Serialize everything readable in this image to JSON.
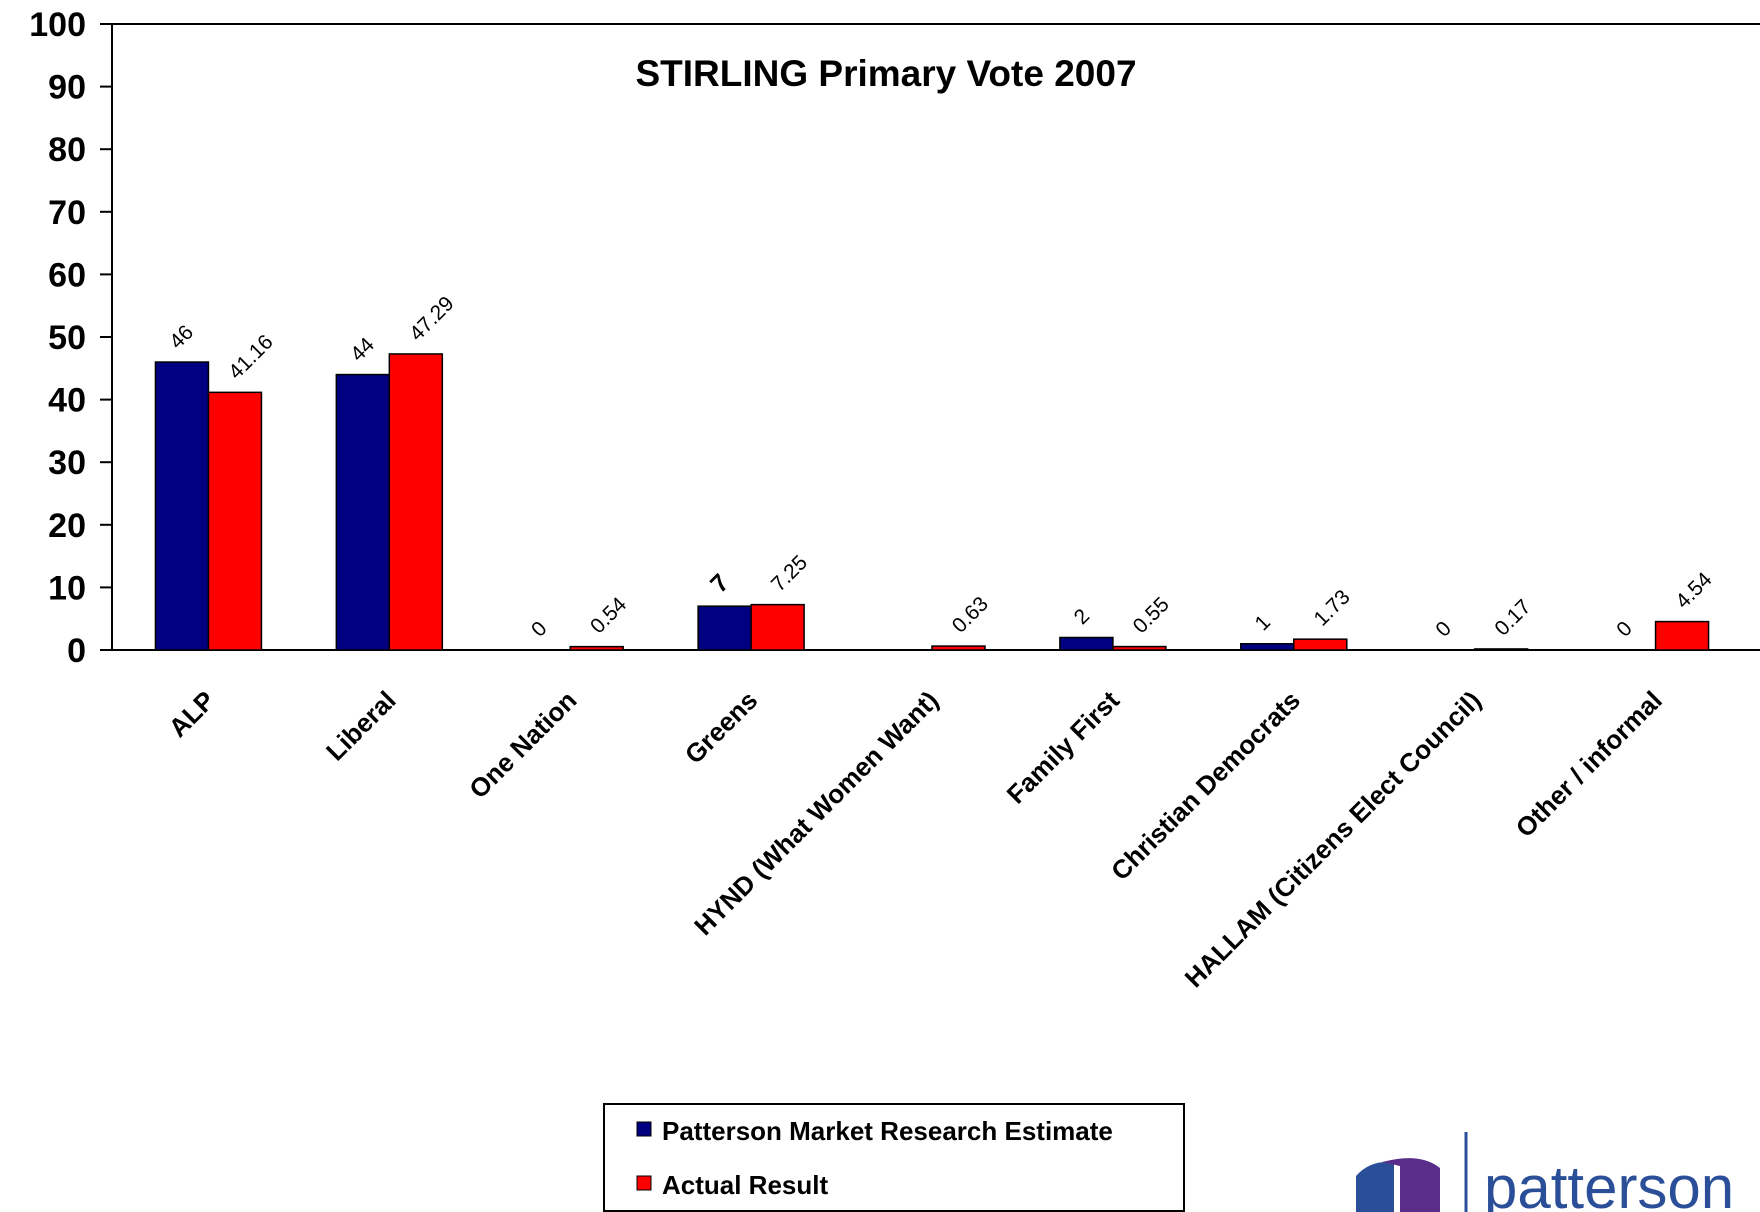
{
  "chart_data": {
    "type": "bar",
    "title": "STIRLING Primary Vote 2007",
    "xlabel": "",
    "ylabel": "",
    "ylim": [
      0,
      100
    ],
    "yticks": [
      0,
      10,
      20,
      30,
      40,
      50,
      60,
      70,
      80,
      90,
      100
    ],
    "grid": false,
    "legend_position": "bottom-center",
    "categories": [
      "ALP",
      "Liberal",
      "One Nation",
      "Greens",
      "HYND (What Women Want)",
      "Family First",
      "Christian Democrats",
      "HALLAM (Citizens Elect Council)",
      "Other / informal"
    ],
    "series": [
      {
        "name": "Patterson Market Research Estimate",
        "color": "#000080",
        "values": [
          46,
          44,
          0,
          7,
          null,
          2,
          1,
          0,
          0
        ],
        "labels": [
          "46",
          "44",
          "0",
          "7",
          "",
          "2",
          "1",
          "0",
          "0"
        ]
      },
      {
        "name": "Actual Result",
        "color": "#ff0000",
        "values": [
          41.16,
          47.29,
          0.54,
          7.25,
          0.63,
          0.55,
          1.73,
          0.17,
          4.54
        ],
        "labels": [
          "41.16",
          "47.29",
          "0.54",
          "7.25",
          "0.63",
          "0.55",
          "1.73",
          "0.17",
          "4.54"
        ]
      }
    ]
  },
  "logo": {
    "text": "patterson",
    "colors": {
      "dark": "#2a4f98",
      "purple": "#5b2d8a"
    }
  }
}
